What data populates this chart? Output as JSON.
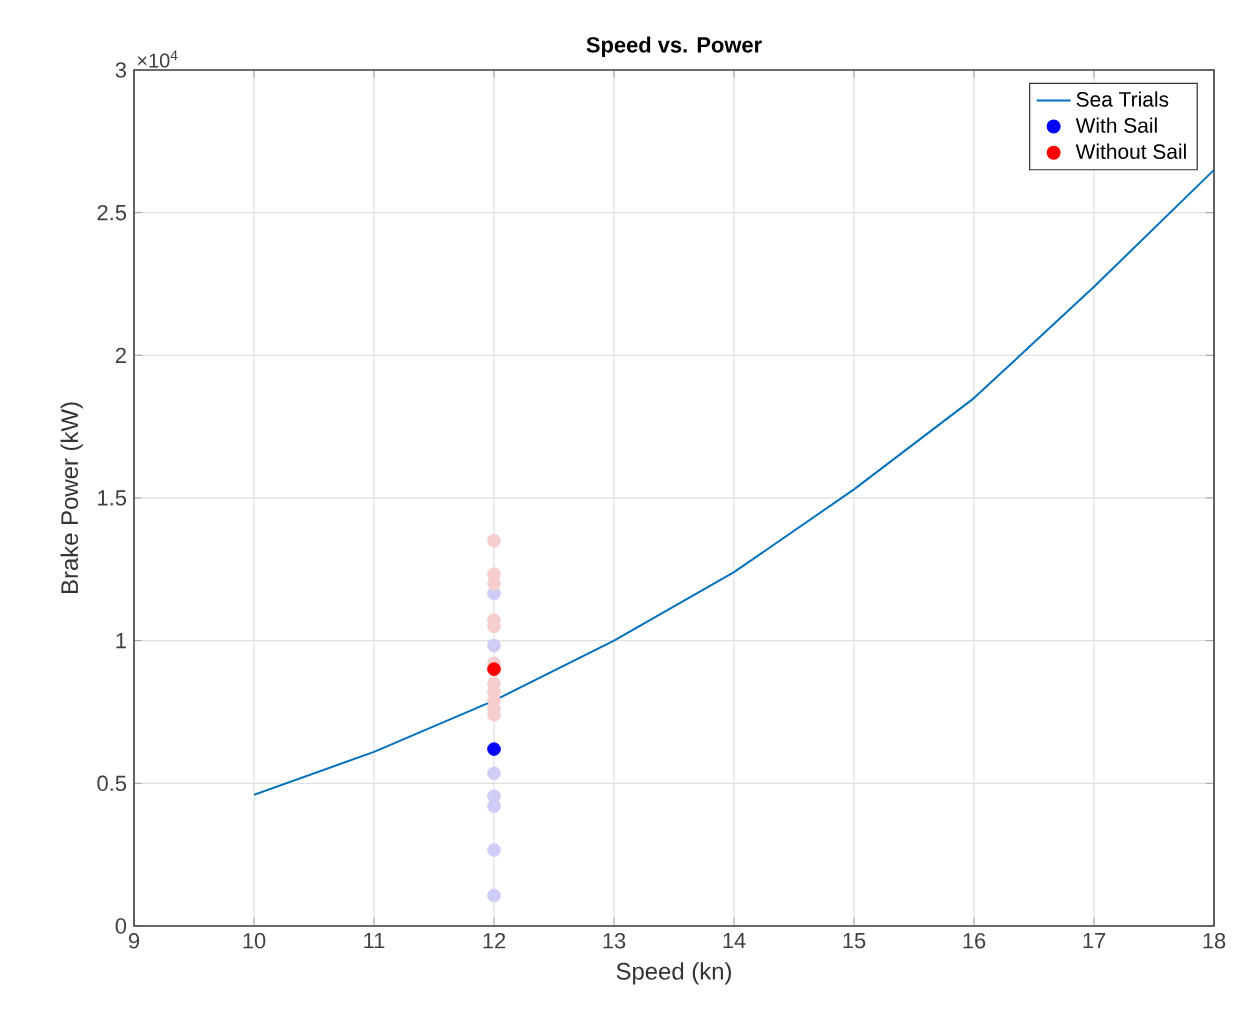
{
  "chart_data": {
    "type": "line",
    "title": "Speed vs. Power",
    "xlabel": "Speed (kn)",
    "ylabel": "Brake Power (kW)",
    "annotations": [
      "×10$^{4}$"
    ],
    "xlim": [
      9,
      18
    ],
    "xticks": [
      9,
      10,
      11,
      12,
      13,
      14,
      15,
      16,
      17,
      18
    ],
    "ylim": [
      0,
      3
    ],
    "yticks": [
      0,
      0.5,
      1,
      1.5,
      2,
      2.5,
      3
    ],
    "grid": true,
    "legend": "top right",
    "series": [
      {
        "name": "Sea Trials",
        "color": "#0072bd",
        "marker": "none",
        "x": [
          10,
          11,
          12,
          13,
          14,
          15,
          16,
          17,
          18
        ],
        "values": [
          0.46,
          0.61,
          0.79,
          1.0,
          1.24,
          1.53,
          1.85,
          2.24,
          2.65
        ]
      },
      {
        "type": "scatter",
        "color": "#cdcdf7",
        "marker": "circle",
        "x": [
          12,
          12,
          12,
          12,
          12,
          12,
          12
        ],
        "values": [
          1.165,
          0.983,
          0.535,
          0.455,
          0.42,
          0.266,
          0.107
        ]
      },
      {
        "type": "scatter",
        "color": "#f7cdcd",
        "marker": "circle",
        "x": [
          12,
          12,
          12,
          12,
          12,
          12,
          12,
          12,
          12,
          12,
          12
        ],
        "values": [
          1.35,
          1.233,
          1.2,
          1.072,
          1.05,
          0.92,
          0.85,
          0.82,
          0.79,
          0.76,
          0.74
        ]
      },
      {
        "name": "With Sail",
        "type": "scatter",
        "color": "#0000ff",
        "marker": "circle",
        "x": [
          12
        ],
        "values": [
          0.62
        ]
      },
      {
        "name": "Without Sail",
        "type": "scatter",
        "color": "#ff0000",
        "marker": "circle",
        "x": [
          12
        ],
        "values": [
          0.9
        ]
      }
    ]
  }
}
